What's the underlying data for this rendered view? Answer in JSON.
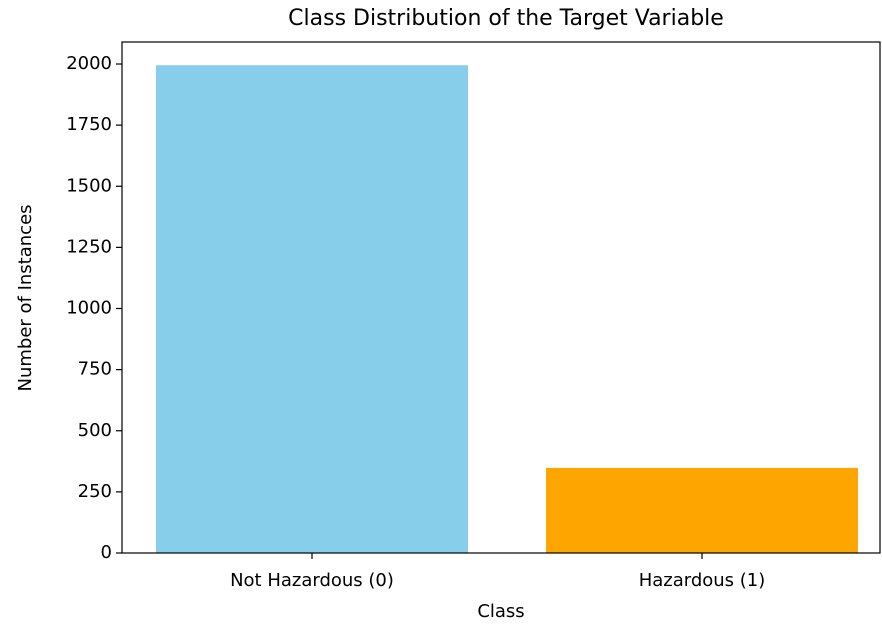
{
  "chart_data": {
    "type": "bar",
    "title": "Class Distribution of the Target Variable",
    "x_label": "Class",
    "y_label": "Number of Instances",
    "categories": [
      "Not Hazardous (0)",
      "Hazardous (1)"
    ],
    "values": [
      1995,
      348
    ],
    "colors": [
      "#87ceeb",
      "#ffa500"
    ],
    "ylim": [
      0,
      2090
    ],
    "yticks": [
      0,
      250,
      500,
      750,
      1000,
      1250,
      1500,
      1750,
      2000
    ]
  }
}
